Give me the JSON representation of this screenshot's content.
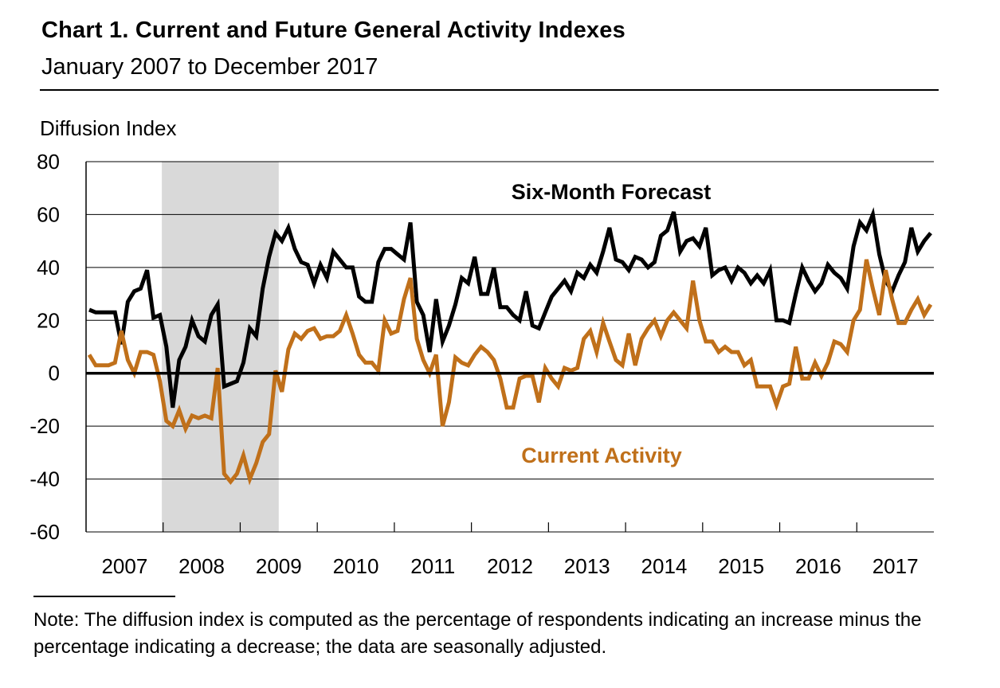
{
  "title": "Chart 1. Current and Future General Activity Indexes",
  "subtitle": "January 2007 to December 2017",
  "note": "Note: The diffusion index is computed as the percentage of respondents indicating an increase minus the percentage indicating a decrease; the data are seasonally adjusted.",
  "chart_data": {
    "type": "line",
    "ylabel": "Diffusion Index",
    "ylim": [
      -60,
      80
    ],
    "yticks": [
      80,
      60,
      40,
      20,
      0,
      -20,
      -40,
      -60
    ],
    "x_tick_labels": [
      "2007",
      "2008",
      "2009",
      "2010",
      "2011",
      "2012",
      "2013",
      "2014",
      "2015",
      "2016",
      "2017"
    ],
    "x_start": "2007-01",
    "frequency": "monthly",
    "grid": true,
    "recession_shading": {
      "start": "2007-12",
      "end": "2009-06",
      "color": "#d9d9d9"
    },
    "zero_line": true,
    "series": [
      {
        "name": "Six-Month Forecast",
        "color": "#000000",
        "values": [
          24,
          23,
          23,
          23,
          23,
          11,
          27,
          31,
          32,
          39,
          21,
          22,
          10,
          -13,
          5,
          10,
          20,
          14,
          12,
          22,
          26,
          -5,
          -4,
          -3,
          4,
          17,
          14,
          32,
          44,
          53,
          50,
          55,
          47,
          42,
          41,
          34,
          41,
          36,
          46,
          43,
          40,
          40,
          29,
          27,
          27,
          42,
          47,
          47,
          45,
          43,
          57,
          27,
          22,
          8,
          28,
          12,
          18,
          26,
          36,
          34,
          44,
          30,
          30,
          40,
          25,
          25,
          22,
          20,
          31,
          18,
          17,
          23,
          29,
          32,
          35,
          31,
          38,
          36,
          41,
          38,
          46,
          55,
          43,
          42,
          39,
          44,
          43,
          40,
          42,
          52,
          54,
          61,
          46,
          50,
          51,
          48,
          55,
          37,
          39,
          40,
          35,
          40,
          38,
          34,
          37,
          34,
          39,
          20,
          20,
          19,
          30,
          40,
          35,
          31,
          34,
          41,
          38,
          36,
          32,
          48,
          57,
          54,
          60,
          45,
          35,
          31,
          37,
          42,
          55,
          46,
          50,
          53
        ]
      },
      {
        "name": "Current Activity",
        "color": "#c0701a",
        "values": [
          7,
          3,
          3,
          3,
          4,
          16,
          5,
          0,
          8,
          8,
          7,
          -3,
          -18,
          -20,
          -14,
          -21,
          -16,
          -17,
          -16,
          -17,
          2,
          -38,
          -41,
          -38,
          -31,
          -40,
          -34,
          -26,
          -23,
          1,
          -7,
          9,
          15,
          13,
          16,
          17,
          13,
          14,
          14,
          16,
          22,
          15,
          7,
          4,
          4,
          1,
          20,
          15,
          16,
          28,
          36,
          13,
          5,
          0,
          7,
          -20,
          -11,
          6,
          4,
          3,
          7,
          10,
          8,
          5,
          -2,
          -13,
          -13,
          -2,
          -1,
          -1,
          -11,
          2,
          -2,
          -5,
          2,
          1,
          2,
          13,
          16,
          8,
          19,
          12,
          5,
          3,
          15,
          3,
          13,
          17,
          20,
          14,
          20,
          23,
          20,
          17,
          35,
          20,
          12,
          12,
          8,
          10,
          8,
          8,
          3,
          5,
          -5,
          -5,
          -5,
          -12,
          -5,
          -4,
          10,
          -2,
          -2,
          4,
          -1,
          4,
          12,
          11,
          8,
          20,
          24,
          43,
          32,
          22,
          39,
          28,
          19,
          19,
          24,
          28,
          22,
          26
        ]
      }
    ],
    "annotations": [
      "Six-Month Forecast",
      "Current Activity"
    ]
  }
}
